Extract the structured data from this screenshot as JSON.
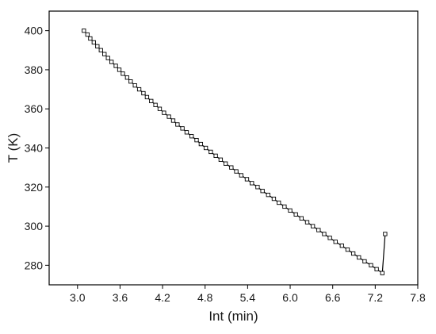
{
  "chart_data": {
    "type": "line",
    "title": "",
    "xlabel": "Int (min)",
    "ylabel": "T (K)",
    "xlim": [
      2.6,
      7.8
    ],
    "ylim": [
      270,
      410
    ],
    "x_ticks": [
      3.0,
      3.6,
      4.2,
      4.8,
      5.4,
      6.0,
      6.6,
      7.2,
      7.8
    ],
    "x_tick_labels": [
      "3.0",
      "3.6",
      "4.2",
      "4.8",
      "5.4",
      "6.0",
      "6.6",
      "7.2",
      "7.8"
    ],
    "y_ticks": [
      280,
      300,
      320,
      340,
      360,
      380,
      400
    ],
    "y_tick_labels": [
      "280",
      "300",
      "320",
      "340",
      "360",
      "380",
      "400"
    ],
    "grid": false,
    "legend": "none",
    "marker": "open-square",
    "line_color": "#000000",
    "series": [
      {
        "x": [
          3.09,
          3.14,
          3.18,
          3.23,
          3.28,
          3.33,
          3.38,
          3.43,
          3.48,
          3.54,
          3.59,
          3.64,
          3.7,
          3.75,
          3.81,
          3.87,
          3.93,
          3.98,
          4.04,
          4.1,
          4.16,
          4.22,
          4.29,
          4.35,
          4.41,
          4.48,
          4.54,
          4.61,
          4.68,
          4.74,
          4.81,
          4.88,
          4.95,
          5.02,
          5.09,
          5.17,
          5.24,
          5.31,
          5.39,
          5.46,
          5.54,
          5.61,
          5.69,
          5.77,
          5.84,
          5.92,
          6.0,
          6.08,
          6.16,
          6.24,
          6.32,
          6.4,
          6.48,
          6.56,
          6.64,
          6.73,
          6.81,
          6.89,
          6.97,
          7.05,
          7.14,
          7.22,
          7.3,
          7.34
        ],
        "y": [
          400,
          398,
          396,
          394,
          392,
          390,
          388,
          386,
          384,
          382,
          380,
          378,
          376,
          374,
          372,
          370,
          368,
          366,
          364,
          362,
          360,
          358,
          356,
          354,
          352,
          350,
          348,
          346,
          344,
          342,
          340,
          338,
          336,
          334,
          332,
          330,
          328,
          326,
          324,
          322,
          320,
          318,
          316,
          314,
          312,
          310,
          308,
          306,
          304,
          302,
          300,
          298,
          296,
          294,
          292,
          290,
          288,
          286,
          284,
          282,
          280,
          278,
          276,
          296
        ]
      }
    ]
  }
}
